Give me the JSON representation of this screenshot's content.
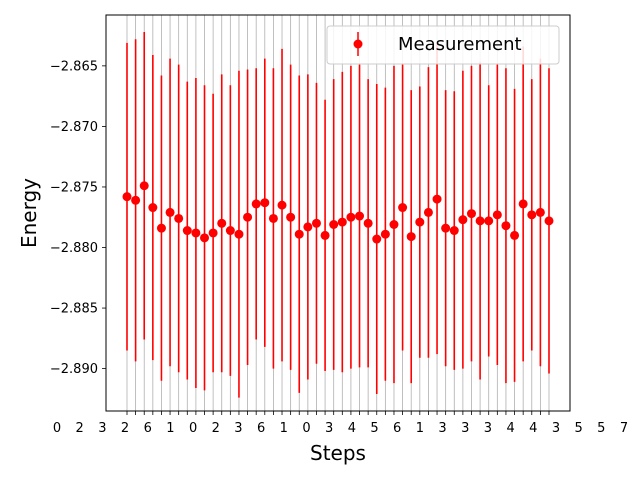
{
  "chart_data": {
    "type": "scatter",
    "title": "",
    "xlabel": "Steps",
    "ylabel": "Energy",
    "ylim": [
      -2.8935,
      -2.8608
    ],
    "yticks": [
      -2.865,
      -2.87,
      -2.875,
      -2.88,
      -2.885,
      -2.89
    ],
    "ytick_labels": [
      "−2.865",
      "−2.870",
      "−2.875",
      "−2.880",
      "−2.885",
      "−2.890"
    ],
    "xtick_labels": [
      "0",
      "2",
      "3",
      "2",
      "6",
      "1",
      "0",
      "2",
      "3",
      "6",
      "1",
      "0",
      "3",
      "4",
      "5",
      "6",
      "1",
      "3",
      "3",
      "3",
      "4",
      "4",
      "3",
      "5",
      "5",
      "7"
    ],
    "grid": "x",
    "legend": {
      "position": "top-right",
      "entries": [
        "Measurement"
      ]
    },
    "colors": {
      "series": "#ff0000"
    },
    "series": [
      {
        "name": "Measurement",
        "y": [
          -2.8758,
          -2.8761,
          -2.8749,
          -2.8767,
          -2.8784,
          -2.8771,
          -2.8776,
          -2.8786,
          -2.8788,
          -2.8792,
          -2.8788,
          -2.878,
          -2.8786,
          -2.8789,
          -2.8775,
          -2.8764,
          -2.8763,
          -2.8776,
          -2.8765,
          -2.8775,
          -2.8789,
          -2.8783,
          -2.878,
          -2.879,
          -2.8781,
          -2.8779,
          -2.8775,
          -2.8774,
          -2.878,
          -2.8793,
          -2.8789,
          -2.8781,
          -2.8767,
          -2.8791,
          -2.8779,
          -2.8771,
          -2.876,
          -2.8784,
          -2.8786,
          -2.8777,
          -2.8772,
          -2.8778,
          -2.8778,
          -2.8773,
          -2.8782,
          -2.879,
          -2.8764,
          -2.8773,
          -2.8771,
          -2.8778
        ],
        "yerr": [
          0.0127,
          0.0133,
          0.0127,
          0.0126,
          0.0126,
          0.0127,
          0.0127,
          0.0123,
          0.0128,
          0.0126,
          0.0115,
          0.0123,
          0.012,
          0.0135,
          0.0122,
          0.0112,
          0.0119,
          0.0124,
          0.0129,
          0.0126,
          0.0131,
          0.0126,
          0.0116,
          0.0112,
          0.012,
          0.0124,
          0.0125,
          0.0125,
          0.0119,
          0.0128,
          0.0121,
          0.0131,
          0.0118,
          0.0121,
          0.0112,
          0.012,
          0.0128,
          0.0114,
          0.0115,
          0.0123,
          0.0122,
          0.0131,
          0.0112,
          0.0124,
          0.013,
          0.0121,
          0.013,
          0.0112,
          0.0127,
          0.0126
        ]
      }
    ]
  }
}
